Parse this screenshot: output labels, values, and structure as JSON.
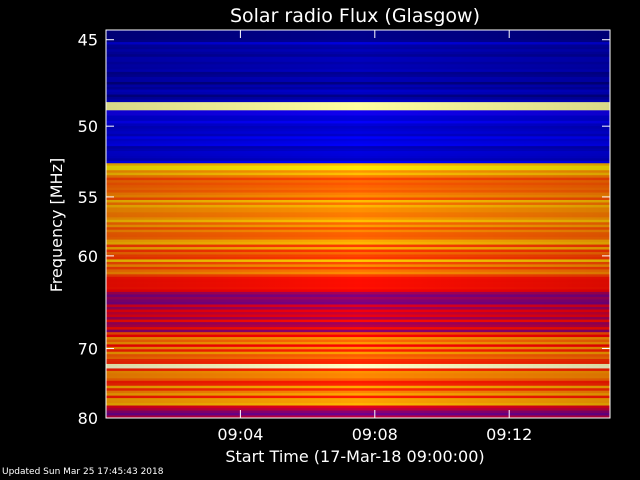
{
  "chart_data": {
    "type": "heatmap",
    "title": "Solar radio Flux (Glasgow)",
    "xlabel": "Start Time (17-Mar-18 09:00:00)",
    "ylabel": "Frequency [MHz]",
    "x_ticks": [
      "09:04",
      "09:08",
      "09:12"
    ],
    "x_tick_minutes": [
      4,
      8,
      12
    ],
    "xlim_minutes": [
      0,
      15
    ],
    "y_ticks": [
      45,
      50,
      55,
      60,
      70,
      80
    ],
    "ylim_mhz": [
      44.5,
      80
    ],
    "y_scale": "reciprocal",
    "grid": false,
    "colormap": [
      "#000080",
      "#0000ff",
      "#ff0000",
      "#ffff00",
      "#ffffff"
    ],
    "bands": [
      {
        "from_mhz": 45.0,
        "to_mhz": 45.5,
        "level": 0.12
      },
      {
        "from_mhz": 45.5,
        "to_mhz": 48.5,
        "level": 0.08
      },
      {
        "from_mhz": 48.5,
        "to_mhz": 49.0,
        "level": 0.9
      },
      {
        "from_mhz": 49.0,
        "to_mhz": 50.5,
        "level": 0.2
      },
      {
        "from_mhz": 50.5,
        "to_mhz": 52.5,
        "level": 0.18
      },
      {
        "from_mhz": 52.5,
        "to_mhz": 53.0,
        "level": 0.75
      },
      {
        "from_mhz": 53.0,
        "to_mhz": 62.0,
        "level": 0.62
      },
      {
        "from_mhz": 62.0,
        "to_mhz": 68.0,
        "level": 0.45
      },
      {
        "from_mhz": 68.0,
        "to_mhz": 72.0,
        "level": 0.58
      },
      {
        "from_mhz": 72.0,
        "to_mhz": 72.6,
        "level": 0.95
      },
      {
        "from_mhz": 72.6,
        "to_mhz": 78.0,
        "level": 0.6
      },
      {
        "from_mhz": 78.0,
        "to_mhz": 80.0,
        "level": 0.4
      }
    ]
  },
  "footer": {
    "updated": "Updated Sun Mar 25 17:45:43 2018"
  }
}
